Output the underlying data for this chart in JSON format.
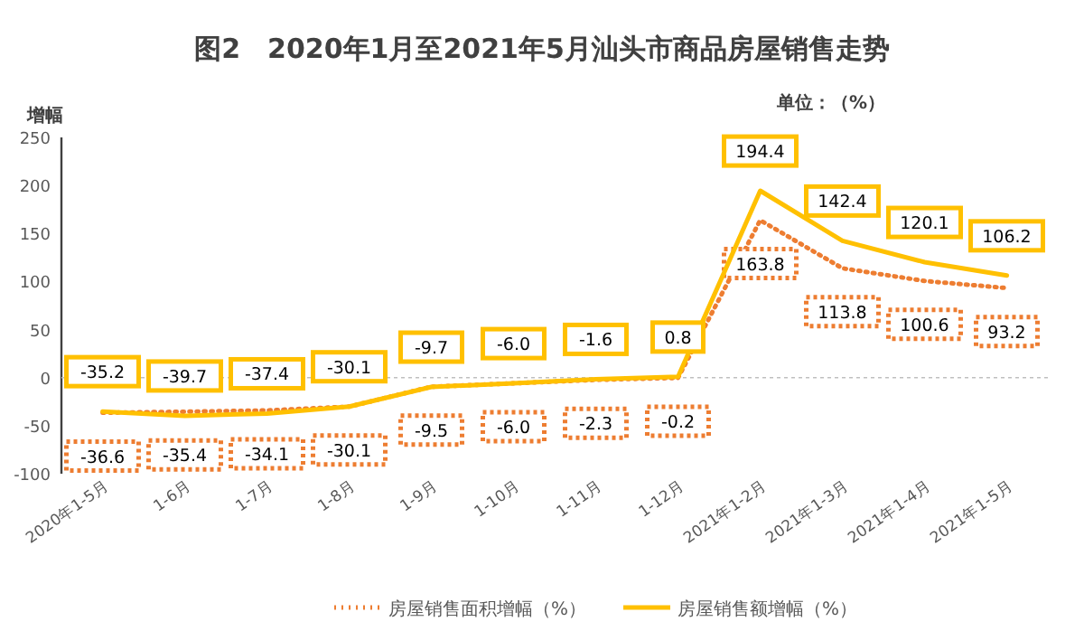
{
  "chart_data": {
    "type": "line",
    "title": "图2　2020年1月至2021年5月汕头市商品房屋销售走势",
    "ylabel": "增幅",
    "annotations": [
      "单位：（%）"
    ],
    "categories": [
      "2020年1-5月",
      "1-6月",
      "1-7月",
      "1-8月",
      "1-9月",
      "1-10月",
      "1-11月",
      "1-12月",
      "2021年1-2月",
      "2021年1-3月",
      "2021年1-4月",
      "2021年1-5月"
    ],
    "series": [
      {
        "name": "房屋销售面积增幅（%）",
        "color": "#ed7d31",
        "line_style": "dotted",
        "values": [
          -36.6,
          -35.4,
          -34.1,
          -30.1,
          -9.5,
          -6.0,
          -2.3,
          -0.2,
          163.8,
          113.8,
          100.6,
          93.2
        ],
        "value_labels": [
          "-36.6",
          "-35.4",
          "-34.1",
          "-30.1",
          "-9.5",
          "-6.0",
          "-2.3",
          "-0.2",
          "163.8",
          "113.8",
          "100.6",
          "93.2"
        ]
      },
      {
        "name": "房屋销售额增幅（%）",
        "color": "#ffc000",
        "line_style": "solid",
        "values": [
          -35.2,
          -39.7,
          -37.4,
          -30.1,
          -9.7,
          -6.0,
          -1.6,
          0.8,
          194.4,
          142.4,
          120.1,
          106.2
        ],
        "value_labels": [
          "-35.2",
          "-39.7",
          "-37.4",
          "-30.1",
          "-9.7",
          "-6.0",
          "-1.6",
          "0.8",
          "194.4",
          "142.4",
          "120.1",
          "106.2"
        ]
      }
    ],
    "ylim": [
      -100,
      250
    ],
    "yticks": [
      -100,
      -50,
      0,
      50,
      100,
      150,
      200,
      250
    ],
    "legend": "bottom"
  }
}
